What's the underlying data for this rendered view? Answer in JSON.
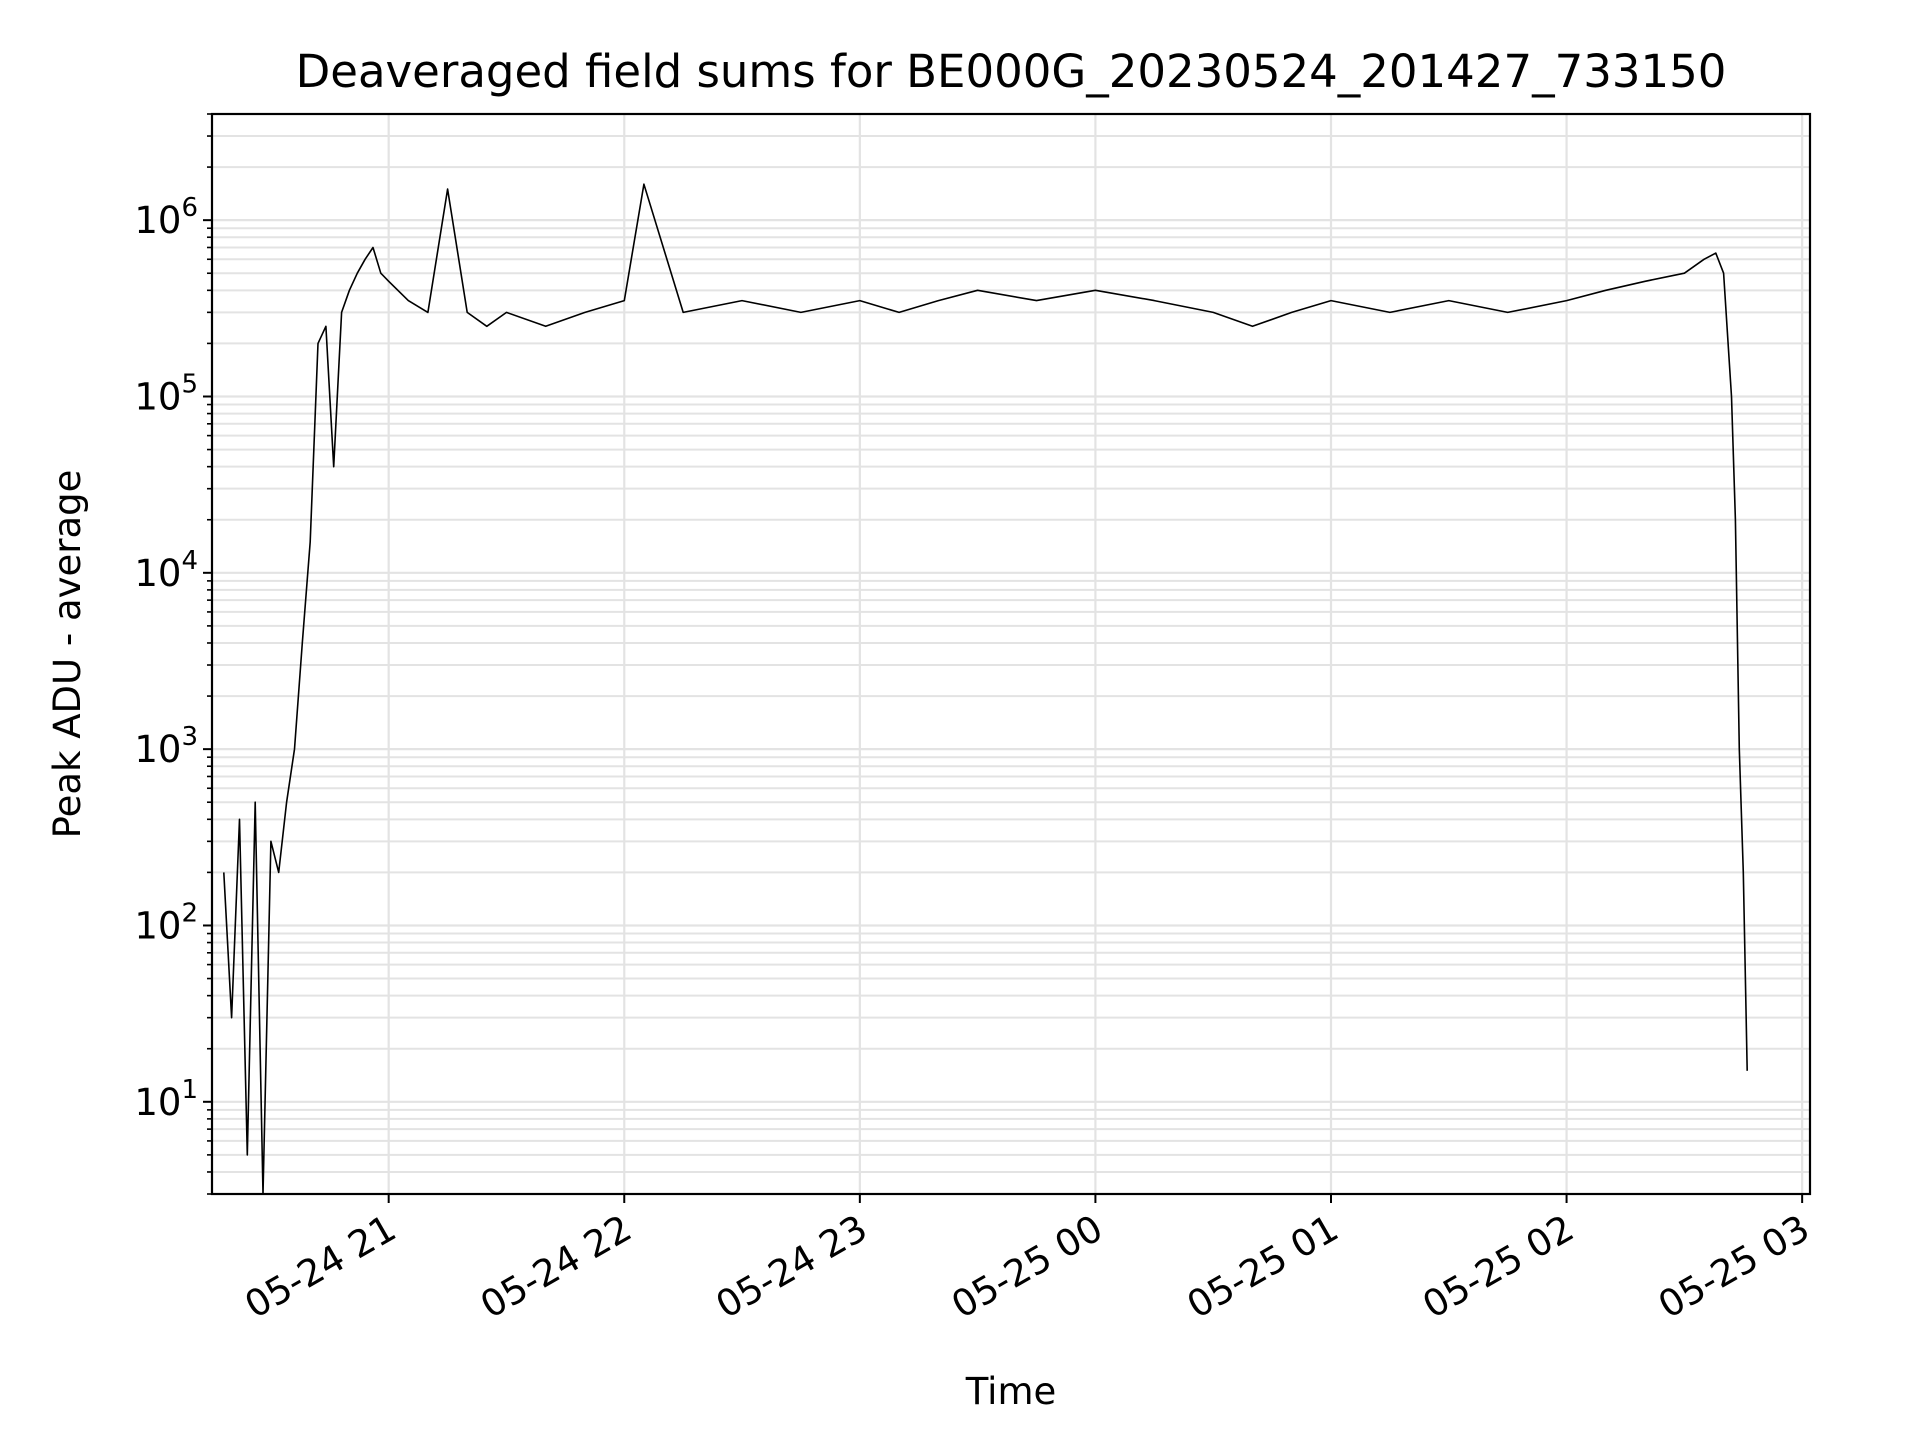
{
  "chart_data": {
    "type": "line",
    "title": "Deaveraged field sums for BE000G_20230524_201427_733150",
    "xlabel": "Time",
    "ylabel": "Peak ADU - average",
    "xscale": "time",
    "yscale": "log",
    "xlim": [
      "2023-05-24 20:15",
      "2023-05-25 03:02"
    ],
    "ylim": [
      3,
      4000000
    ],
    "grid": true,
    "legend": "none",
    "line_color": "#000000",
    "grid_color": "#e3e3e3",
    "x_ticks": [
      {
        "t": "2023-05-24 21:00",
        "label": "05-24 21"
      },
      {
        "t": "2023-05-24 22:00",
        "label": "05-24 22"
      },
      {
        "t": "2023-05-24 23:00",
        "label": "05-24 23"
      },
      {
        "t": "2023-05-25 00:00",
        "label": "05-25 00"
      },
      {
        "t": "2023-05-25 01:00",
        "label": "05-25 01"
      },
      {
        "t": "2023-05-25 02:00",
        "label": "05-25 02"
      },
      {
        "t": "2023-05-25 03:00",
        "label": "05-25 03"
      }
    ],
    "y_ticks": [
      {
        "value": 10,
        "base": "10",
        "exp": "1"
      },
      {
        "value": 100,
        "base": "10",
        "exp": "2"
      },
      {
        "value": 1000,
        "base": "10",
        "exp": "3"
      },
      {
        "value": 10000,
        "base": "10",
        "exp": "4"
      },
      {
        "value": 100000,
        "base": "10",
        "exp": "5"
      },
      {
        "value": 1000000,
        "base": "10",
        "exp": "6"
      }
    ],
    "series": [
      {
        "x": [
          "2023-05-24 20:18",
          "2023-05-24 20:20",
          "2023-05-24 20:22",
          "2023-05-24 20:24",
          "2023-05-24 20:26",
          "2023-05-24 20:28",
          "2023-05-24 20:30",
          "2023-05-24 20:32",
          "2023-05-24 20:34",
          "2023-05-24 20:36",
          "2023-05-24 20:38",
          "2023-05-24 20:40",
          "2023-05-24 20:42",
          "2023-05-24 20:44",
          "2023-05-24 20:46",
          "2023-05-24 20:48",
          "2023-05-24 20:50",
          "2023-05-24 20:52",
          "2023-05-24 20:54",
          "2023-05-24 20:56",
          "2023-05-24 20:58",
          "2023-05-24 21:00",
          "2023-05-24 21:05",
          "2023-05-24 21:10",
          "2023-05-24 21:15",
          "2023-05-24 21:20",
          "2023-05-24 21:25",
          "2023-05-24 21:30",
          "2023-05-24 21:40",
          "2023-05-24 21:50",
          "2023-05-24 22:00",
          "2023-05-24 22:05",
          "2023-05-24 22:15",
          "2023-05-24 22:30",
          "2023-05-24 22:45",
          "2023-05-24 23:00",
          "2023-05-24 23:10",
          "2023-05-24 23:20",
          "2023-05-24 23:30",
          "2023-05-24 23:45",
          "2023-05-25 00:00",
          "2023-05-25 00:15",
          "2023-05-25 00:30",
          "2023-05-25 00:40",
          "2023-05-25 00:50",
          "2023-05-25 01:00",
          "2023-05-25 01:15",
          "2023-05-25 01:30",
          "2023-05-25 01:45",
          "2023-05-25 02:00",
          "2023-05-25 02:10",
          "2023-05-25 02:20",
          "2023-05-25 02:30",
          "2023-05-25 02:35",
          "2023-05-25 02:38",
          "2023-05-25 02:40",
          "2023-05-25 02:42",
          "2023-05-25 02:43",
          "2023-05-25 02:44",
          "2023-05-25 02:45",
          "2023-05-25 02:46"
        ],
        "y": [
          200,
          30,
          400,
          5,
          500,
          3,
          300,
          200,
          500,
          1000,
          4000,
          15000,
          200000,
          250000,
          40000,
          300000,
          400000,
          500000,
          600000,
          700000,
          500000,
          450000,
          350000,
          300000,
          1500000,
          300000,
          250000,
          300000,
          250000,
          300000,
          350000,
          1600000,
          300000,
          350000,
          300000,
          350000,
          300000,
          350000,
          400000,
          350000,
          400000,
          350000,
          300000,
          250000,
          300000,
          350000,
          300000,
          350000,
          300000,
          350000,
          400000,
          450000,
          500000,
          600000,
          650000,
          500000,
          100000,
          20000,
          1000,
          200,
          15
        ]
      }
    ]
  }
}
